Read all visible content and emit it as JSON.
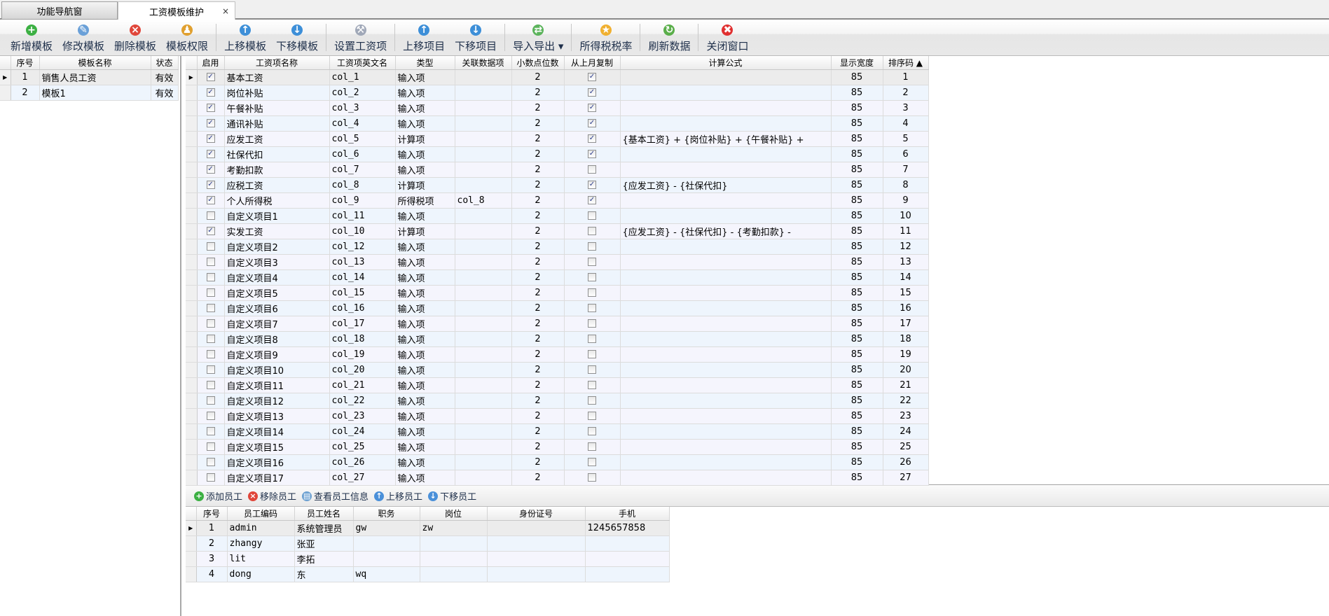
{
  "tabs": [
    {
      "label": "功能导航窗",
      "active": false
    },
    {
      "label": "工资模板维护",
      "active": true,
      "close": "×"
    }
  ],
  "toolbar": [
    {
      "label": "新增模板",
      "icon": "add-icon",
      "color": "#3cb043",
      "glyph": "+"
    },
    {
      "label": "修改模板",
      "icon": "edit-icon",
      "color": "#6aa0d8",
      "glyph": "✎"
    },
    {
      "label": "删除模板",
      "icon": "delete-icon",
      "color": "#e0463a",
      "glyph": "×"
    },
    {
      "label": "模板权限",
      "icon": "lock-user-icon",
      "color": "#e0a030",
      "glyph": "♟"
    },
    {
      "sep": true
    },
    {
      "label": "上移模板",
      "icon": "move-up-icon",
      "color": "#3d8fd8",
      "glyph": "↑"
    },
    {
      "label": "下移模板",
      "icon": "move-down-icon",
      "color": "#3d8fd8",
      "glyph": "↓"
    },
    {
      "sep": true
    },
    {
      "label": "设置工资项",
      "icon": "tools-icon",
      "color": "#a0a8b8",
      "glyph": "⚒"
    },
    {
      "sep": true
    },
    {
      "label": "上移项目",
      "icon": "move-up-icon",
      "color": "#3d8fd8",
      "glyph": "↑"
    },
    {
      "label": "下移项目",
      "icon": "move-down-icon",
      "color": "#3d8fd8",
      "glyph": "↓"
    },
    {
      "sep": true
    },
    {
      "label": "导入导出 ▾",
      "icon": "import-export-icon",
      "color": "#5bb35b",
      "glyph": "⇄"
    },
    {
      "sep": true
    },
    {
      "label": "所得税税率",
      "icon": "star-icon",
      "color": "#f0b030",
      "glyph": "★"
    },
    {
      "sep": true
    },
    {
      "label": "刷新数据",
      "icon": "refresh-icon",
      "color": "#5aae4a",
      "glyph": "↻"
    },
    {
      "sep": true
    },
    {
      "label": "关闭窗口",
      "icon": "close-window-icon",
      "color": "#e03030",
      "glyph": "✖"
    }
  ],
  "templates": {
    "columns": [
      "序号",
      "模板名称",
      "状态"
    ],
    "rows": [
      [
        "1",
        "销售人员工资",
        "有效"
      ],
      [
        "2",
        "模板1",
        "有效"
      ]
    ]
  },
  "items": {
    "columns": [
      "启用",
      "工资项名称",
      "工资项英文名",
      "类型",
      "关联数据项",
      "小数点位数",
      "从上月复制",
      "计算公式",
      "显示宽度",
      "排序码 ▲"
    ],
    "rows": [
      [
        true,
        "基本工资",
        "col_1",
        "输入项",
        "",
        "2",
        true,
        "",
        "85",
        "1"
      ],
      [
        true,
        "岗位补贴",
        "col_2",
        "输入项",
        "",
        "2",
        true,
        "",
        "85",
        "2"
      ],
      [
        true,
        "午餐补贴",
        "col_3",
        "输入项",
        "",
        "2",
        true,
        "",
        "85",
        "3"
      ],
      [
        true,
        "通讯补贴",
        "col_4",
        "输入项",
        "",
        "2",
        true,
        "",
        "85",
        "4"
      ],
      [
        true,
        "应发工资",
        "col_5",
        "计算项",
        "",
        "2",
        true,
        "{基本工资} + {岗位补贴} + {午餐补贴} +",
        "85",
        "5"
      ],
      [
        true,
        "社保代扣",
        "col_6",
        "输入项",
        "",
        "2",
        true,
        "",
        "85",
        "6"
      ],
      [
        true,
        "考勤扣款",
        "col_7",
        "输入项",
        "",
        "2",
        false,
        "",
        "85",
        "7"
      ],
      [
        true,
        "应税工资",
        "col_8",
        "计算项",
        "",
        "2",
        true,
        "{应发工资} - {社保代扣}",
        "85",
        "8"
      ],
      [
        true,
        "个人所得税",
        "col_9",
        "所得税项",
        "col_8",
        "2",
        true,
        "",
        "85",
        "9"
      ],
      [
        false,
        "自定义项目1",
        "col_11",
        "输入项",
        "",
        "2",
        false,
        "",
        "85",
        "10"
      ],
      [
        true,
        "实发工资",
        "col_10",
        "计算项",
        "",
        "2",
        false,
        "{应发工资} - {社保代扣} - {考勤扣款} -",
        "85",
        "11"
      ],
      [
        false,
        "自定义项目2",
        "col_12",
        "输入项",
        "",
        "2",
        false,
        "",
        "85",
        "12"
      ],
      [
        false,
        "自定义项目3",
        "col_13",
        "输入项",
        "",
        "2",
        false,
        "",
        "85",
        "13"
      ],
      [
        false,
        "自定义项目4",
        "col_14",
        "输入项",
        "",
        "2",
        false,
        "",
        "85",
        "14"
      ],
      [
        false,
        "自定义项目5",
        "col_15",
        "输入项",
        "",
        "2",
        false,
        "",
        "85",
        "15"
      ],
      [
        false,
        "自定义项目6",
        "col_16",
        "输入项",
        "",
        "2",
        false,
        "",
        "85",
        "16"
      ],
      [
        false,
        "自定义项目7",
        "col_17",
        "输入项",
        "",
        "2",
        false,
        "",
        "85",
        "17"
      ],
      [
        false,
        "自定义项目8",
        "col_18",
        "输入项",
        "",
        "2",
        false,
        "",
        "85",
        "18"
      ],
      [
        false,
        "自定义项目9",
        "col_19",
        "输入项",
        "",
        "2",
        false,
        "",
        "85",
        "19"
      ],
      [
        false,
        "自定义项目10",
        "col_20",
        "输入项",
        "",
        "2",
        false,
        "",
        "85",
        "20"
      ],
      [
        false,
        "自定义项目11",
        "col_21",
        "输入项",
        "",
        "2",
        false,
        "",
        "85",
        "21"
      ],
      [
        false,
        "自定义项目12",
        "col_22",
        "输入项",
        "",
        "2",
        false,
        "",
        "85",
        "22"
      ],
      [
        false,
        "自定义项目13",
        "col_23",
        "输入项",
        "",
        "2",
        false,
        "",
        "85",
        "23"
      ],
      [
        false,
        "自定义项目14",
        "col_24",
        "输入项",
        "",
        "2",
        false,
        "",
        "85",
        "24"
      ],
      [
        false,
        "自定义项目15",
        "col_25",
        "输入项",
        "",
        "2",
        false,
        "",
        "85",
        "25"
      ],
      [
        false,
        "自定义项目16",
        "col_26",
        "输入项",
        "",
        "2",
        false,
        "",
        "85",
        "26"
      ],
      [
        false,
        "自定义项目17",
        "col_27",
        "输入项",
        "",
        "2",
        false,
        "",
        "85",
        "27"
      ]
    ]
  },
  "emp_toolbar": [
    {
      "label": "添加员工",
      "icon": "add-icon",
      "color": "#3cb043",
      "glyph": "+"
    },
    {
      "label": "移除员工",
      "icon": "remove-icon",
      "color": "#e0463a",
      "glyph": "×"
    },
    {
      "label": "查看员工信息",
      "icon": "info-card-icon",
      "color": "#6a9fd0",
      "glyph": "▤"
    },
    {
      "label": "上移员工",
      "icon": "arrow-up-icon",
      "color": "#4a90d9",
      "glyph": "↑"
    },
    {
      "label": "下移员工",
      "icon": "arrow-down-icon",
      "color": "#4a90d9",
      "glyph": "↓"
    }
  ],
  "employees": {
    "columns": [
      "序号",
      "员工编码",
      "员工姓名",
      "职务",
      "岗位",
      "身份证号",
      "手机"
    ],
    "rows": [
      [
        "1",
        "admin",
        "系统管理员",
        "gw",
        "zw",
        "",
        "1245657858"
      ],
      [
        "2",
        "zhangy",
        "张亚",
        "",
        "",
        "",
        ""
      ],
      [
        "3",
        "lit",
        "李拓",
        "",
        "",
        "",
        ""
      ],
      [
        "4",
        "dong",
        "东",
        "wq",
        "",
        "",
        ""
      ]
    ]
  }
}
